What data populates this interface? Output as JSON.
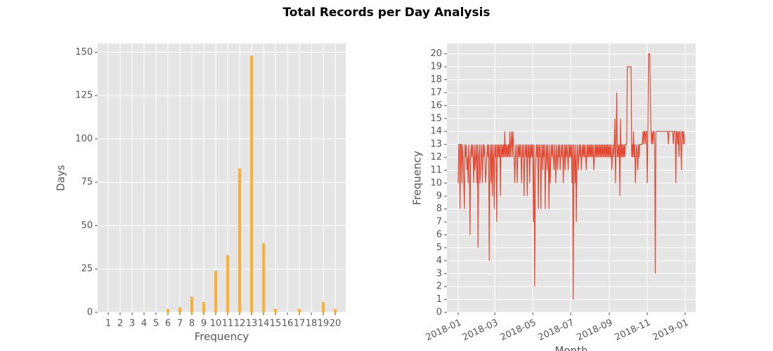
{
  "title": "Total Records per Day Analysis",
  "chart_data": [
    {
      "type": "bar",
      "xlabel": "Frequency",
      "ylabel": "Days",
      "categories": [
        1,
        2,
        3,
        4,
        5,
        6,
        7,
        8,
        9,
        10,
        11,
        12,
        13,
        14,
        15,
        16,
        17,
        18,
        19,
        20
      ],
      "values": [
        0,
        0,
        0,
        0,
        0,
        2,
        3,
        9,
        6,
        24,
        33,
        83,
        148,
        40,
        2,
        0,
        2,
        0,
        6,
        2
      ],
      "color": "#fbb034",
      "ylim": [
        0,
        155
      ],
      "yticks": [
        0,
        25,
        50,
        75,
        100,
        125,
        150
      ],
      "grid": true
    },
    {
      "type": "line",
      "xlabel": "Month",
      "ylabel": "Frequency",
      "xlim": [
        "2018-01",
        "2019-01"
      ],
      "xticks": [
        "2018-01",
        "2018-03",
        "2018-05",
        "2018-07",
        "2018-09",
        "2018-11",
        "2019-01"
      ],
      "ylim": [
        0,
        20.8
      ],
      "yticks": [
        0,
        1,
        2,
        3,
        4,
        5,
        6,
        7,
        8,
        9,
        10,
        11,
        12,
        13,
        14,
        15,
        16,
        17,
        18,
        19,
        20
      ],
      "grid": true,
      "color": "#e24a33",
      "values": [
        10,
        13,
        13,
        8,
        13,
        13,
        10,
        13,
        12,
        10,
        8,
        13,
        12,
        13,
        11,
        12,
        10,
        13,
        12,
        6,
        12,
        13,
        12,
        13,
        12,
        10,
        13,
        11,
        12,
        13,
        10,
        13,
        5,
        12,
        13,
        10,
        11,
        13,
        12,
        10,
        13,
        12,
        13,
        12,
        10,
        11,
        12,
        13,
        12,
        13,
        4,
        12,
        13,
        10,
        13,
        9,
        13,
        12,
        8,
        13,
        12,
        13,
        7,
        13,
        12,
        13,
        12,
        13,
        9,
        13,
        12,
        13,
        12,
        13,
        12,
        14,
        12,
        13,
        12,
        13,
        12,
        13,
        12,
        14,
        12,
        13,
        14,
        12,
        14,
        13,
        12,
        10,
        12,
        13,
        12,
        10,
        13,
        12,
        13,
        12,
        13,
        12,
        10,
        13,
        12,
        13,
        9,
        12,
        13,
        12,
        13,
        9,
        13,
        12,
        13,
        10,
        13,
        12,
        13,
        12,
        13,
        7,
        13,
        2,
        10,
        12,
        13,
        12,
        13,
        8,
        13,
        12,
        13,
        8,
        12,
        13,
        11,
        13,
        12,
        13,
        8,
        12,
        13,
        11,
        13,
        12,
        8,
        13,
        10,
        12,
        13,
        12,
        13,
        12,
        11,
        13,
        12,
        10,
        13,
        12,
        11,
        13,
        12,
        13,
        11,
        12,
        13,
        12,
        13,
        10,
        12,
        13,
        11,
        13,
        12,
        13,
        12,
        11,
        13,
        12,
        13,
        12,
        13,
        10,
        13,
        1,
        13,
        12,
        10,
        13,
        7,
        12,
        13,
        11,
        12,
        13,
        12,
        13,
        11,
        12,
        13,
        12,
        13,
        12,
        13,
        12,
        11,
        13,
        12,
        13,
        12,
        13,
        12,
        13,
        12,
        13,
        12,
        13,
        11,
        12,
        13,
        12,
        13,
        12,
        13,
        12,
        13,
        12,
        13,
        12,
        13,
        12,
        13,
        12,
        13,
        12,
        13,
        12,
        13,
        12,
        13,
        12,
        13,
        12,
        13,
        12,
        13,
        11,
        12,
        13,
        12,
        13,
        15,
        10,
        13,
        17,
        12,
        13,
        12,
        13,
        9,
        15,
        12,
        13,
        12,
        13,
        12,
        13,
        12,
        13,
        13,
        13,
        19,
        19,
        19,
        19,
        19,
        19,
        19,
        12,
        13,
        12,
        14,
        12,
        13,
        10,
        12,
        13,
        12,
        11,
        13,
        12,
        13,
        13,
        13,
        13,
        13,
        14,
        13,
        14,
        14,
        13,
        14,
        14,
        10,
        14,
        20,
        20,
        20,
        17,
        14,
        13,
        14,
        13,
        14,
        14,
        13,
        3,
        14,
        14,
        14,
        14,
        14,
        14,
        14,
        14,
        14,
        14,
        14,
        14,
        14,
        14,
        14,
        14,
        14,
        14,
        14,
        14,
        13,
        14,
        14,
        14,
        14,
        14,
        14,
        14,
        13,
        14,
        14,
        14,
        10,
        14,
        14,
        13,
        14,
        12,
        14,
        14,
        13,
        11,
        14,
        14,
        13,
        14,
        13
      ]
    }
  ]
}
